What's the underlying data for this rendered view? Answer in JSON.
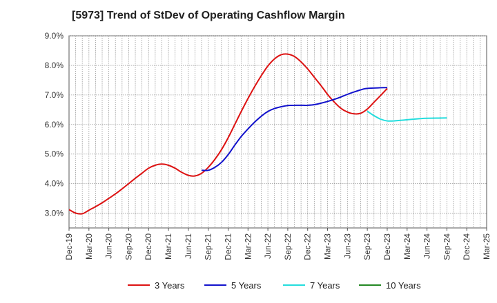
{
  "chart_data": {
    "type": "line",
    "title": "[5973]  Trend of StDev of Operating Cashflow Margin",
    "xlabel": "",
    "ylabel": "",
    "x_ticks": [
      "Dec-19",
      "Mar-20",
      "Jun-20",
      "Sep-20",
      "Dec-20",
      "Mar-21",
      "Jun-21",
      "Sep-21",
      "Dec-21",
      "Mar-22",
      "Jun-22",
      "Sep-22",
      "Dec-22",
      "Mar-23",
      "Jun-23",
      "Sep-23",
      "Dec-23",
      "Mar-24",
      "Jun-24",
      "Sep-24",
      "Dec-24",
      "Mar-25"
    ],
    "y_ticks": [
      "3.0%",
      "4.0%",
      "5.0%",
      "6.0%",
      "7.0%",
      "8.0%",
      "9.0%"
    ],
    "ylim": [
      2.5,
      9.0
    ],
    "y_unit": "%",
    "grid": true,
    "legend_position": "bottom",
    "series": [
      {
        "name": "3 Years",
        "color": "#dd1111",
        "points": [
          [
            "Dec-19",
            3.12
          ],
          [
            "Jan-20",
            3.0
          ],
          [
            "Feb-20",
            2.98
          ],
          [
            "Mar-20",
            3.1
          ],
          [
            "Apr-20",
            3.22
          ],
          [
            "May-20",
            3.35
          ],
          [
            "Jun-20",
            3.5
          ],
          [
            "Jul-20",
            3.65
          ],
          [
            "Aug-20",
            3.82
          ],
          [
            "Sep-20",
            4.0
          ],
          [
            "Oct-20",
            4.18
          ],
          [
            "Nov-20",
            4.35
          ],
          [
            "Dec-20",
            4.52
          ],
          [
            "Jan-21",
            4.62
          ],
          [
            "Feb-21",
            4.66
          ],
          [
            "Mar-21",
            4.62
          ],
          [
            "Apr-21",
            4.52
          ],
          [
            "May-21",
            4.38
          ],
          [
            "Jun-21",
            4.28
          ],
          [
            "Jul-21",
            4.26
          ],
          [
            "Aug-21",
            4.35
          ],
          [
            "Sep-21",
            4.55
          ],
          [
            "Oct-21",
            4.82
          ],
          [
            "Nov-21",
            5.15
          ],
          [
            "Dec-21",
            5.55
          ],
          [
            "Jan-22",
            6.0
          ],
          [
            "Feb-22",
            6.45
          ],
          [
            "Mar-22",
            6.88
          ],
          [
            "Apr-22",
            7.28
          ],
          [
            "May-22",
            7.65
          ],
          [
            "Jun-22",
            7.98
          ],
          [
            "Jul-22",
            8.22
          ],
          [
            "Aug-22",
            8.36
          ],
          [
            "Sep-22",
            8.38
          ],
          [
            "Oct-22",
            8.3
          ],
          [
            "Nov-22",
            8.12
          ],
          [
            "Dec-22",
            7.88
          ],
          [
            "Jan-23",
            7.6
          ],
          [
            "Feb-23",
            7.32
          ],
          [
            "Mar-23",
            7.02
          ],
          [
            "Apr-23",
            6.76
          ],
          [
            "May-23",
            6.55
          ],
          [
            "Jun-23",
            6.42
          ],
          [
            "Jul-23",
            6.36
          ],
          [
            "Aug-23",
            6.38
          ],
          [
            "Sep-23",
            6.52
          ],
          [
            "Oct-23",
            6.75
          ],
          [
            "Nov-23",
            6.98
          ],
          [
            "Dec-23",
            7.22
          ]
        ]
      },
      {
        "name": "5 Years",
        "color": "#1111cc",
        "points": [
          [
            "Aug-21",
            4.45
          ],
          [
            "Sep-21",
            4.45
          ],
          [
            "Oct-21",
            4.55
          ],
          [
            "Nov-21",
            4.72
          ],
          [
            "Dec-21",
            4.98
          ],
          [
            "Jan-22",
            5.3
          ],
          [
            "Feb-22",
            5.6
          ],
          [
            "Mar-22",
            5.85
          ],
          [
            "Apr-22",
            6.08
          ],
          [
            "May-22",
            6.28
          ],
          [
            "Jun-22",
            6.44
          ],
          [
            "Jul-22",
            6.54
          ],
          [
            "Aug-22",
            6.6
          ],
          [
            "Sep-22",
            6.64
          ],
          [
            "Oct-22",
            6.65
          ],
          [
            "Nov-22",
            6.65
          ],
          [
            "Dec-22",
            6.65
          ],
          [
            "Jan-23",
            6.67
          ],
          [
            "Feb-23",
            6.72
          ],
          [
            "Mar-23",
            6.78
          ],
          [
            "Apr-23",
            6.85
          ],
          [
            "May-23",
            6.93
          ],
          [
            "Jun-23",
            7.02
          ],
          [
            "Jul-23",
            7.1
          ],
          [
            "Aug-23",
            7.17
          ],
          [
            "Sep-23",
            7.22
          ],
          [
            "Dec-23",
            7.25
          ]
        ]
      },
      {
        "name": "7 Years",
        "color": "#22dddd",
        "points": [
          [
            "Sep-23",
            6.45
          ],
          [
            "Oct-23",
            6.3
          ],
          [
            "Nov-23",
            6.18
          ],
          [
            "Dec-23",
            6.12
          ],
          [
            "Jan-24",
            6.12
          ],
          [
            "Feb-24",
            6.14
          ],
          [
            "Mar-24",
            6.16
          ],
          [
            "Apr-24",
            6.18
          ],
          [
            "May-24",
            6.2
          ],
          [
            "Jun-24",
            6.21
          ],
          [
            "Sep-24",
            6.22
          ]
        ]
      },
      {
        "name": "10 Years",
        "color": "#228822",
        "points": []
      }
    ]
  }
}
